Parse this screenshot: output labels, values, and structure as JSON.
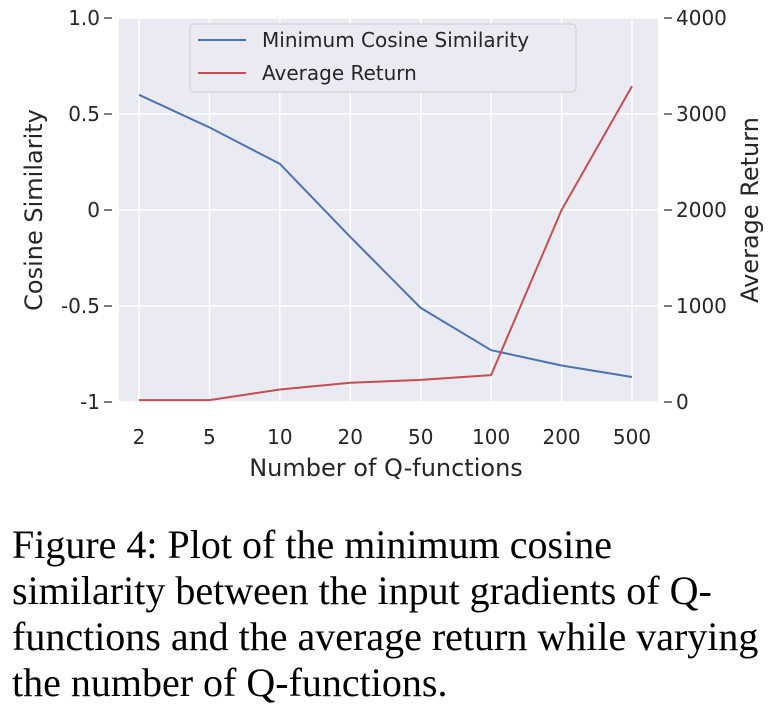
{
  "chart_data": {
    "type": "line",
    "x": [
      2,
      5,
      10,
      20,
      50,
      100,
      200,
      500
    ],
    "x_tick_labels": [
      "2",
      "5",
      "10",
      "20",
      "50",
      "100",
      "200",
      "500"
    ],
    "xlabel": "Number of Q-functions",
    "ylabel_left": "Cosine Similarity",
    "ylabel_right": "Average Return",
    "ylim_left": [
      -1,
      1
    ],
    "ylim_right": [
      0,
      4000
    ],
    "y_left_ticks": [
      -1,
      -0.5,
      0,
      0.5,
      1.0
    ],
    "y_left_tick_labels": [
      "-1",
      "-0.5",
      "0",
      "0.5",
      "1.0"
    ],
    "y_right_ticks": [
      0,
      1000,
      2000,
      3000,
      4000
    ],
    "y_right_tick_labels": [
      "0",
      "1000",
      "2000",
      "3000",
      "4000"
    ],
    "grid": true,
    "legend_position": "top-center",
    "series": [
      {
        "name": "Minimum Cosine Similarity",
        "axis": "left",
        "color": "#4c72b0",
        "values": [
          0.6,
          0.43,
          0.24,
          -0.14,
          -0.51,
          -0.73,
          -0.81,
          -0.87
        ]
      },
      {
        "name": "Average Return",
        "axis": "right",
        "color": "#c44e52",
        "values": [
          20,
          20,
          130,
          200,
          230,
          280,
          2000,
          3290
        ]
      }
    ]
  },
  "caption": "Figure 4: Plot of the minimum cosine similarity between the input gradients of Q-functions and the average return while varying the number of Q-functions."
}
